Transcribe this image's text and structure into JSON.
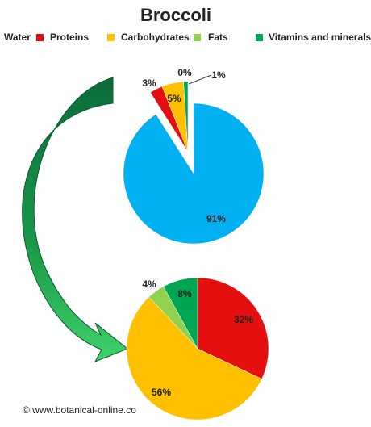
{
  "chart_data": [
    {
      "type": "pie",
      "title": "Broccoli",
      "categories": [
        "Water",
        "Proteins",
        "Carbohydrates",
        "Fats",
        "Vitamins and minerals"
      ],
      "values": [
        91,
        3,
        5,
        0,
        1
      ],
      "value_labels": [
        "91%",
        "3%",
        "5%",
        "0%",
        "1%"
      ],
      "colors": [
        "#00b0f0",
        "#e41010",
        "#ffc000",
        "#92d050",
        "#00a651"
      ]
    },
    {
      "type": "pie",
      "categories": [
        "Proteins",
        "Carbohydrates",
        "Fats",
        "Vitamins and minerals"
      ],
      "values": [
        32,
        56,
        4,
        8
      ],
      "value_labels": [
        "32%",
        "56%",
        "4%",
        "8%"
      ],
      "colors": [
        "#e41010",
        "#ffc000",
        "#92d050",
        "#00a651"
      ]
    }
  ],
  "footer": "© www.botanical-online.co"
}
